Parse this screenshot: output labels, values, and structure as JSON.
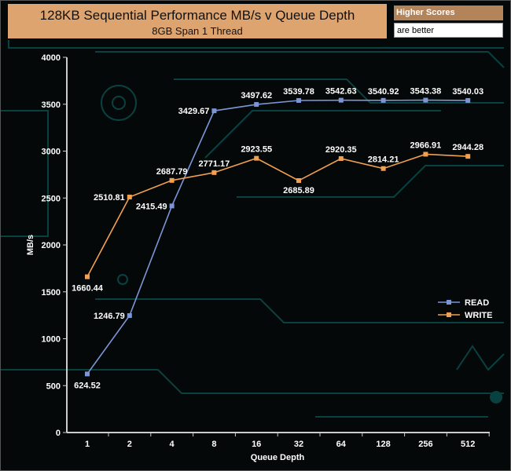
{
  "chart_data": {
    "type": "line",
    "title": "128KB Sequential Performance MB/s v Queue Depth",
    "subtitle": "8GB Span 1 Thread",
    "xlabel": "Queue Depth",
    "ylabel": "MB/s",
    "categories": [
      "1",
      "2",
      "4",
      "8",
      "16",
      "32",
      "64",
      "128",
      "256",
      "512"
    ],
    "ylim": [
      0,
      4000
    ],
    "yticks": [
      0,
      500,
      1000,
      1500,
      2000,
      2500,
      3000,
      3500,
      4000
    ],
    "grid": false,
    "legend_position": "right",
    "series": [
      {
        "name": "READ",
        "color": "#7b96d6",
        "values": [
          624.52,
          1246.79,
          2415.49,
          3429.67,
          3497.62,
          3539.78,
          3542.63,
          3540.92,
          3543.38,
          3540.03
        ]
      },
      {
        "name": "WRITE",
        "color": "#f0a050",
        "values": [
          1660.44,
          2510.81,
          2687.79,
          2771.17,
          2923.55,
          2685.89,
          2920.35,
          2814.21,
          2966.91,
          2944.28
        ]
      }
    ]
  },
  "notes": {
    "line1": "Higher Scores",
    "line2": "are better"
  }
}
